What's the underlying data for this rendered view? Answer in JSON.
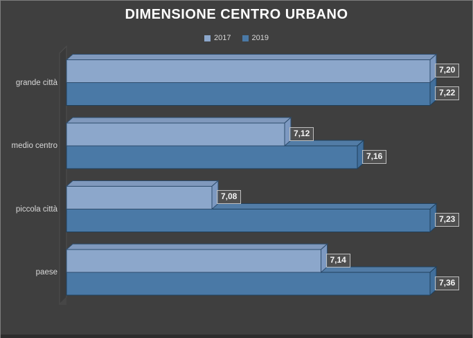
{
  "colors": {
    "background": "#3F3F3F",
    "frame_border": "#7E7E7E",
    "bottom_edge": "#2D2D2D",
    "wall": "#3A3A3A",
    "floor_wedge": "#464646",
    "title_text": "#FFFFFF",
    "category_text": "#D8D8D8",
    "legend_text": "#D9D9D9",
    "value_label_text": "#F5F5F5",
    "value_label_border": "#BFBFBF"
  },
  "chart_data": {
    "type": "bar",
    "orientation": "horizontal",
    "style": "3d",
    "title": "DIMENSIONE CENTRO URBANO",
    "categories": [
      "grande città",
      "medio centro",
      "piccola città",
      "paese"
    ],
    "series": [
      {
        "name": "2017",
        "color": "#8CA7CB",
        "top_color": "#8099BD",
        "side_color": "#7D99C1",
        "stroke_color": "#2D4C6C",
        "values": [
          7.2,
          7.12,
          7.08,
          7.14
        ],
        "labels": [
          "7,20",
          "7,12",
          "7,08",
          "7,14"
        ]
      },
      {
        "name": "2019",
        "color": "#4A79A6",
        "top_color": "#527CA6",
        "side_color": "#416F9C",
        "stroke_color": "#20405C",
        "values": [
          7.22,
          7.16,
          7.23,
          7.36
        ],
        "labels": [
          "7,22",
          "7,16",
          "7,23",
          "7,36"
        ]
      }
    ],
    "value_axis": {
      "min": 7.0,
      "max": 7.2,
      "visible": false,
      "clip_bars_at_max": true
    },
    "category_axis": {
      "visible_labels": true
    },
    "grid": false,
    "legend_position": "top-center",
    "data_labels": "outside-end-boxed",
    "decimal_separator": ","
  }
}
